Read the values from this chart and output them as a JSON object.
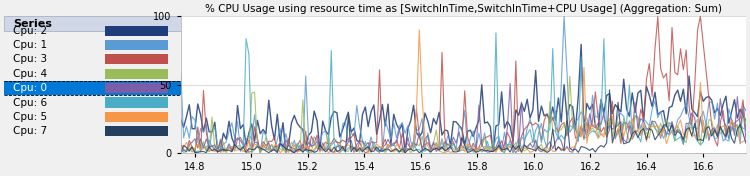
{
  "title": "% CPU Usage using resource time as [SwitchInTime,SwitchInTime+CPU Usage] (Aggregation: Sum)",
  "series_label": "Series",
  "cpu_labels": [
    "Cpu: 2",
    "Cpu: 1",
    "Cpu: 3",
    "Cpu: 4",
    "Cpu: 0",
    "Cpu: 6",
    "Cpu: 5",
    "Cpu: 7"
  ],
  "cpu_colors": [
    "#1f3d7a",
    "#5b9bd5",
    "#c0504d",
    "#9bbb59",
    "#7b5ea7",
    "#4bacc6",
    "#f79646",
    "#243f60"
  ],
  "selected_index": 4,
  "selected_bg": "#0078d7",
  "selected_fg": "#ffffff",
  "xlim": [
    14.75,
    16.75
  ],
  "ylim": [
    0,
    100
  ],
  "xticks": [
    14.8,
    15.0,
    15.2,
    15.4,
    15.6,
    15.8,
    16.0,
    16.2,
    16.4,
    16.6
  ],
  "yticks": [
    0,
    50,
    100
  ],
  "bg_color": "#f0f0f0",
  "plot_bg": "#ffffff",
  "title_fontsize": 7.5,
  "tick_fontsize": 7,
  "legend_fontsize": 8,
  "seed": 42
}
